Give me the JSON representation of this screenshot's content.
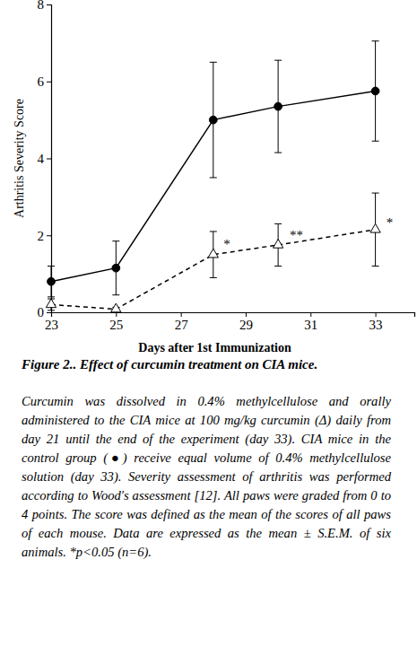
{
  "chart_data": {
    "type": "line",
    "x_label": "Days after 1st Immunization",
    "y_label": "Arthritis Severity Score",
    "x": [
      23,
      25,
      28,
      30,
      33
    ],
    "series": [
      {
        "color": "#000000",
        "marker": "circle",
        "line_style": "solid",
        "values": [
          0.8,
          1.15,
          5.0,
          5.35,
          5.75
        ],
        "errors": [
          0.4,
          0.7,
          1.5,
          1.2,
          1.3
        ]
      },
      {
        "color": "#000000",
        "marker": "triangle-open",
        "line_style": "dashed",
        "values": [
          0.2,
          0.08,
          1.5,
          1.75,
          2.15
        ],
        "errors": [
          0.15,
          0.05,
          0.6,
          0.55,
          0.95
        ]
      }
    ],
    "annotations": [
      {
        "text": "*",
        "x": 28.42,
        "y": 1.77
      },
      {
        "text": "**",
        "x": 30.56,
        "y": 2.0
      },
      {
        "text": "*",
        "x": 33.44,
        "y": 2.33
      }
    ],
    "xlim": [
      23,
      34.2
    ],
    "xticks": [
      23,
      25,
      27,
      29,
      31,
      33
    ],
    "ylim": [
      0,
      8
    ],
    "yticks": [
      0,
      2,
      4,
      6,
      8
    ],
    "grid": false
  },
  "caption": {
    "title": "Figure 2.. Effect of curcumin treatment on CIA mice.",
    "text": "Curcumin was dissolved in 0.4% methylcellulose and orally administered to the CIA mice at 100 mg/kg curcumin (Δ) daily from day 21 until the end of the experiment (day 33). CIA mice in the control group (●) receive equal volume of 0.4% methylcellulose solution (day 33). Severity assessment of arthritis was performed according to Wood's assessment [12]. All paws were graded from 0 to 4 points. The score was defined as the mean of the scores of all paws of each mouse. Data are expressed as the mean ± S.E.M. of six animals. *p<0.05 (n=6)."
  }
}
